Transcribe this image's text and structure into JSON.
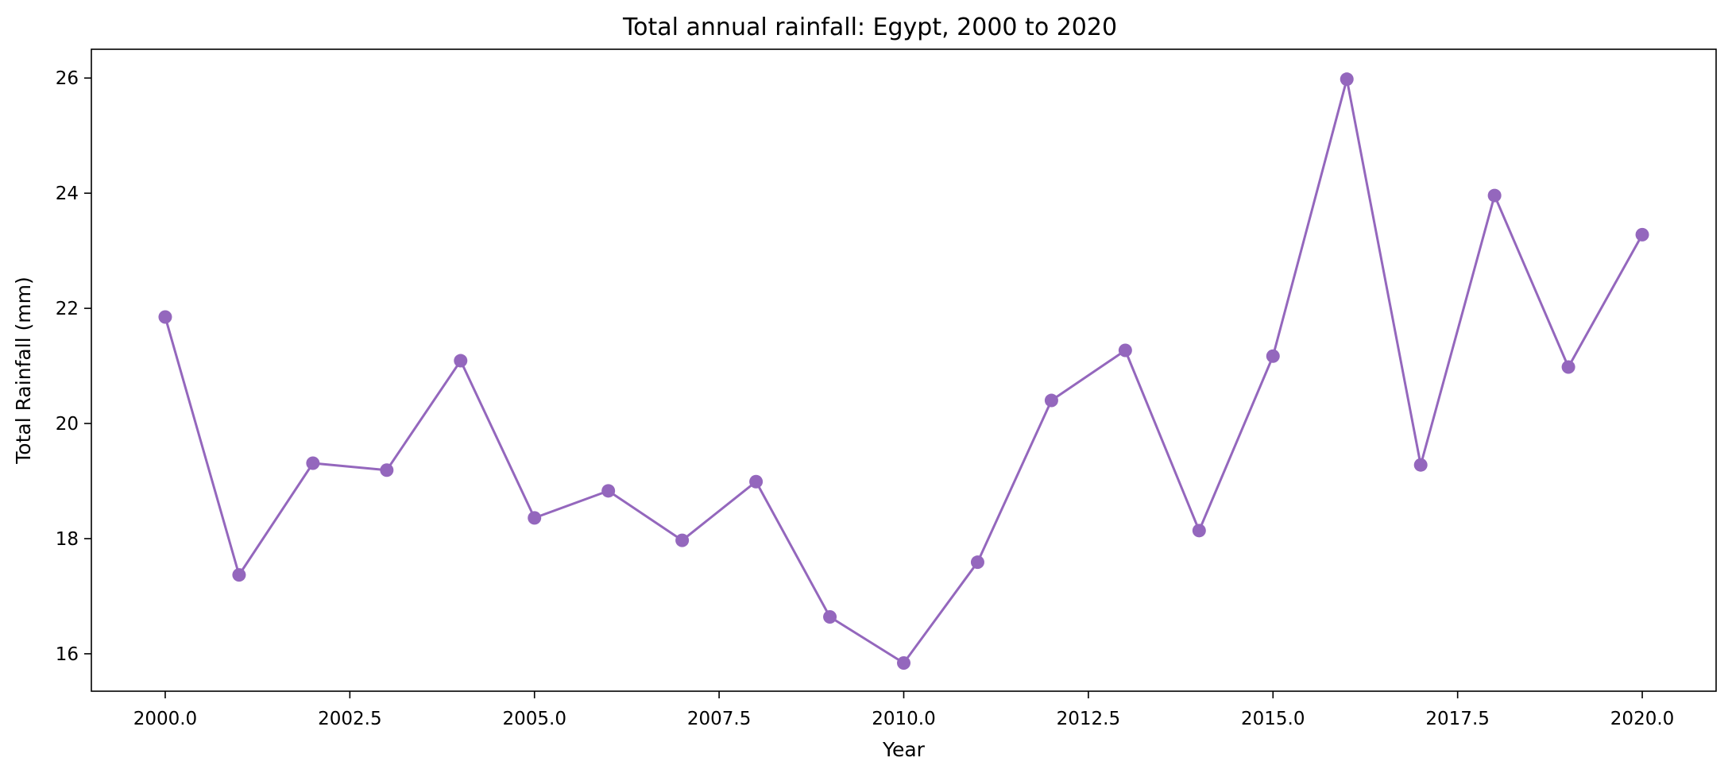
{
  "chart_data": {
    "type": "line",
    "title": "Total annual rainfall: Egypt, 2000 to 2020",
    "xlabel": "Year",
    "ylabel": "Total Rainfall (mm)",
    "xlim": [
      1999.0,
      2021.0
    ],
    "ylim": [
      15.35,
      26.5
    ],
    "xticks": [
      2000.0,
      2002.5,
      2005.0,
      2007.5,
      2010.0,
      2012.5,
      2015.0,
      2017.5,
      2020.0
    ],
    "xtick_labels": [
      "2000.0",
      "2002.5",
      "2005.0",
      "2007.5",
      "2010.0",
      "2012.5",
      "2015.0",
      "2017.5",
      "2020.0"
    ],
    "yticks": [
      16,
      18,
      20,
      22,
      24,
      26
    ],
    "ytick_labels": [
      "16",
      "18",
      "20",
      "22",
      "24",
      "26"
    ],
    "grid": false,
    "legend": "none",
    "series": [
      {
        "color": "#9467bd",
        "marker": "circle",
        "x": [
          2000,
          2001,
          2002,
          2003,
          2004,
          2005,
          2006,
          2007,
          2008,
          2009,
          2010,
          2011,
          2012,
          2013,
          2014,
          2015,
          2016,
          2017,
          2018,
          2019,
          2020
        ],
        "values": [
          21.85,
          17.37,
          19.31,
          19.19,
          21.09,
          18.36,
          18.83,
          17.97,
          18.99,
          16.64,
          15.84,
          17.59,
          20.4,
          21.27,
          18.14,
          21.17,
          25.98,
          19.28,
          23.96,
          20.98,
          23.28
        ]
      }
    ]
  }
}
